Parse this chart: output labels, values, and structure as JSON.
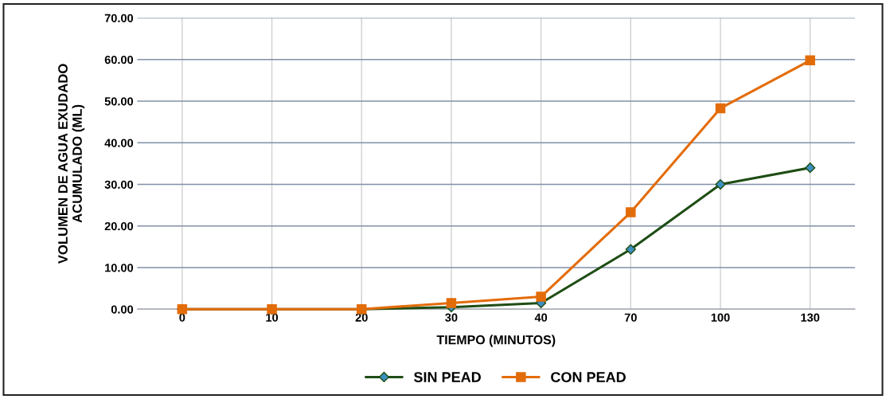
{
  "chart_data": {
    "type": "line",
    "xlabel": "TIEMPO (MINUTOS)",
    "ylabel": "VOLUMEN DE AGUA EXUDADO\nACUMULADO (ML)",
    "categories": [
      "0",
      "10",
      "20",
      "30",
      "40",
      "70",
      "100",
      "130"
    ],
    "series": [
      {
        "name": "SIN PEAD",
        "color": "#1e4d14",
        "marker": "diamond",
        "values": [
          0,
          0,
          0,
          0.5,
          1.5,
          14.4,
          30.0,
          34.0
        ]
      },
      {
        "name": "CON PEAD",
        "color": "#e36c0a",
        "marker": "square",
        "values": [
          0,
          0,
          0,
          1.5,
          3.0,
          23.3,
          48.3,
          59.8
        ]
      }
    ],
    "ylim": [
      0,
      70
    ],
    "yticks": [
      {
        "value": 0,
        "label": "0.00"
      },
      {
        "value": 10,
        "label": "10.00"
      },
      {
        "value": 20,
        "label": "20.00"
      },
      {
        "value": 30,
        "label": "30.00"
      },
      {
        "value": 40,
        "label": "40.00"
      },
      {
        "value": 50,
        "label": "50.00"
      },
      {
        "value": 60,
        "label": "60.00"
      },
      {
        "value": 70,
        "label": "70.00"
      }
    ],
    "grid": true,
    "legend": "bottom",
    "line_style": "solid"
  }
}
